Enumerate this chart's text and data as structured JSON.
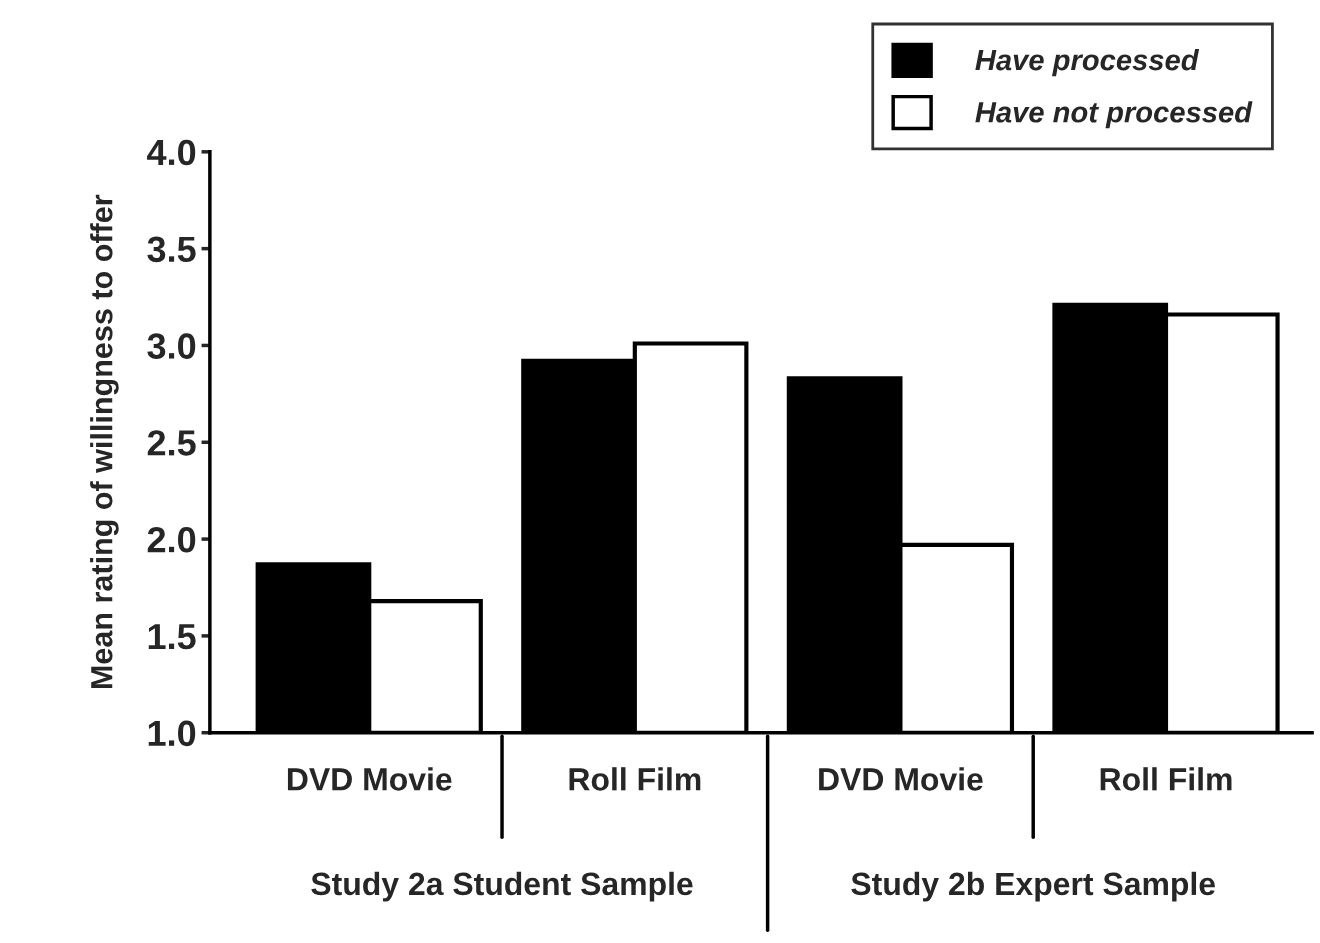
{
  "chart_data": {
    "type": "bar",
    "categories": [
      "DVD Movie",
      "Roll Film",
      "DVD Movie",
      "Roll Film"
    ],
    "series": [
      {
        "name": "Have processed",
        "color": "#000000",
        "values": [
          1.87,
          2.92,
          2.83,
          3.21
        ]
      },
      {
        "name": "Have not processed",
        "color": "#ffffff",
        "values": [
          1.68,
          3.01,
          1.97,
          3.16
        ]
      }
    ],
    "ylabel": "Mean rating of willingness to offer",
    "ylim": [
      1,
      4
    ],
    "yticks": [
      {
        "value": 1,
        "label": "1.0"
      },
      {
        "value": 1.5,
        "label": "1.5"
      },
      {
        "value": 2,
        "label": "2.0"
      },
      {
        "value": 2.5,
        "label": "2.5"
      },
      {
        "value": 3,
        "label": "3.0"
      },
      {
        "value": 3.5,
        "label": "3.5"
      },
      {
        "value": 4,
        "label": "4.0"
      }
    ],
    "annotations": [
      "Study 2a Student Sample",
      "Study 2b Expert Sample"
    ],
    "legend": "top right",
    "grid": false
  }
}
